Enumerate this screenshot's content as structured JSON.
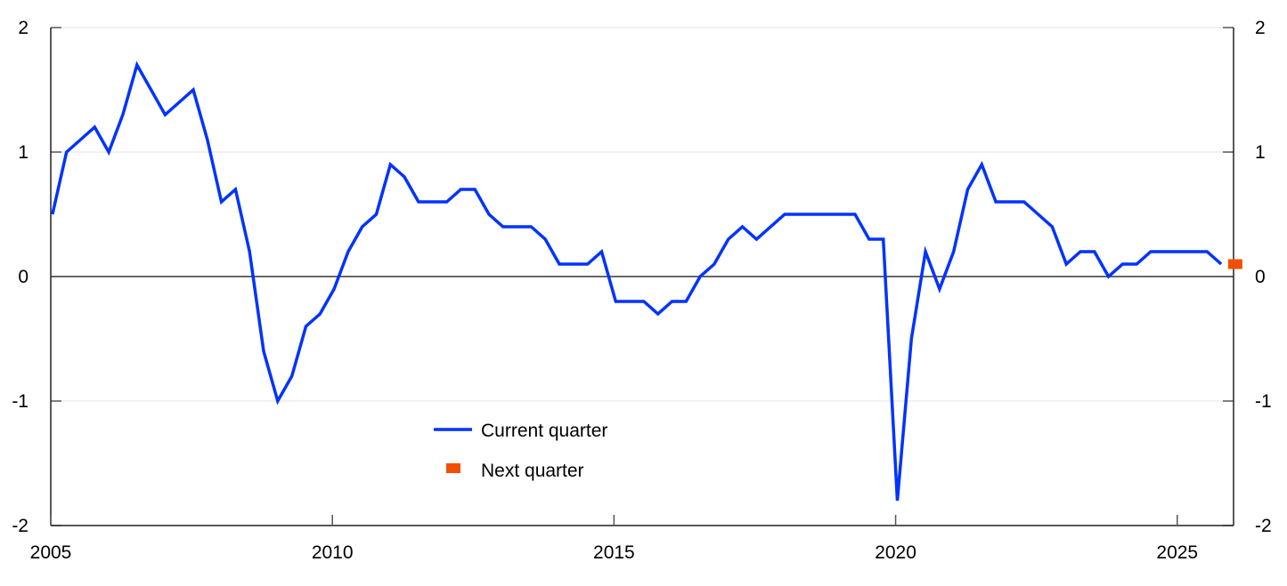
{
  "chart_data": {
    "type": "line",
    "title": "",
    "xlabel": "",
    "ylabel": "",
    "xlim": [
      2005,
      2026
    ],
    "ylim": [
      -2,
      2
    ],
    "x_ticks": [
      "2005",
      "2010",
      "2015",
      "2020",
      "2025"
    ],
    "y_ticks": [
      "2",
      "1",
      "0",
      "-1",
      "-2"
    ],
    "grid": "horizontal",
    "legend_placement": "bottom-center",
    "series": [
      {
        "name": "Current quarter",
        "kind": "line",
        "color": "#0033ff",
        "start": "2005 Q1",
        "frequency": "quarterly",
        "values": [
          0.5,
          1.0,
          1.1,
          1.2,
          1.0,
          1.3,
          1.7,
          1.5,
          1.3,
          1.4,
          1.5,
          1.1,
          0.6,
          0.7,
          0.2,
          -0.6,
          -1.0,
          -0.8,
          -0.4,
          -0.3,
          -0.1,
          0.2,
          0.4,
          0.5,
          0.9,
          0.8,
          0.6,
          0.6,
          0.6,
          0.7,
          0.7,
          0.5,
          0.4,
          0.4,
          0.4,
          0.3,
          0.1,
          0.1,
          0.1,
          0.2,
          -0.2,
          -0.2,
          -0.2,
          -0.3,
          -0.2,
          -0.2,
          0.0,
          0.1,
          0.3,
          0.4,
          0.3,
          0.4,
          0.5,
          0.5,
          0.5,
          0.5,
          0.5,
          0.5,
          0.3,
          0.3,
          -1.8,
          -0.5,
          0.2,
          -0.1,
          0.2,
          0.7,
          0.9,
          0.6,
          0.6,
          0.6,
          0.5,
          0.4,
          0.1,
          0.2,
          0.2,
          0.0,
          0.1,
          0.1,
          0.2,
          0.2,
          0.2,
          0.2,
          0.2,
          0.1
        ]
      },
      {
        "name": "Next quarter",
        "kind": "marker",
        "color": "#f25000",
        "start": "2026 Q1",
        "frequency": "quarterly",
        "values": [
          0.1
        ]
      }
    ]
  }
}
